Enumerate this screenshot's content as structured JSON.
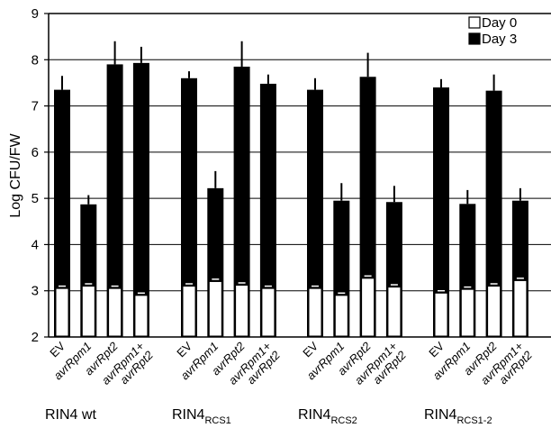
{
  "chart_data": {
    "type": "bar",
    "ylabel": "Log CFU/FW",
    "ylim": [
      2,
      9
    ],
    "yticks": [
      "2",
      "3",
      "4",
      "5",
      "6",
      "7",
      "8",
      "9"
    ],
    "grid": "horizontal",
    "legend_position": "top-right",
    "series": [
      {
        "name": "Day 0",
        "color": "#ffffff"
      },
      {
        "name": "Day 3",
        "color": "#000000"
      }
    ],
    "groups": [
      {
        "label_main": "RIN4 wt",
        "label_sub": "",
        "categories": [
          {
            "line1": "EV",
            "line2": "",
            "italic": false
          },
          {
            "line1": "avrRpm1",
            "line2": "",
            "italic": true
          },
          {
            "line1": "avrRpt2",
            "line2": "",
            "italic": true
          },
          {
            "line1": "avrRpm1+",
            "line2": "avrRpt2",
            "italic": true
          }
        ],
        "day0": [
          3.05,
          3.1,
          3.05,
          2.9
        ],
        "day0_err": [
          0.05,
          0.05,
          0.05,
          0.05
        ],
        "day3": [
          7.35,
          4.87,
          7.9,
          7.93
        ],
        "day3_err": [
          0.3,
          0.2,
          0.5,
          0.35
        ]
      },
      {
        "label_main": "RIN4",
        "label_sub": "RCS1",
        "categories": [
          {
            "line1": "EV",
            "line2": "",
            "italic": false
          },
          {
            "line1": "avrRpm1",
            "line2": "",
            "italic": true
          },
          {
            "line1": "avrRpt2",
            "line2": "",
            "italic": true
          },
          {
            "line1": "avrRpm1+",
            "line2": "avrRpt2",
            "italic": true
          }
        ],
        "day0": [
          3.1,
          3.2,
          3.12,
          3.05
        ],
        "day0_err": [
          0.05,
          0.05,
          0.05,
          0.05
        ],
        "day3": [
          7.6,
          5.22,
          7.85,
          7.48
        ],
        "day3_err": [
          0.15,
          0.37,
          0.55,
          0.2
        ]
      },
      {
        "label_main": "RIN4",
        "label_sub": "RCS2",
        "categories": [
          {
            "line1": "EV",
            "line2": "",
            "italic": false
          },
          {
            "line1": "avrRpm1",
            "line2": "",
            "italic": true
          },
          {
            "line1": "avrRpt2",
            "line2": "",
            "italic": true
          },
          {
            "line1": "avrRpm1+",
            "line2": "avrRpt2",
            "italic": true
          }
        ],
        "day0": [
          3.05,
          2.9,
          3.27,
          3.08
        ],
        "day0_err": [
          0.05,
          0.05,
          0.05,
          0.05
        ],
        "day3": [
          7.35,
          4.95,
          7.63,
          4.92
        ],
        "day3_err": [
          0.25,
          0.38,
          0.52,
          0.35
        ]
      },
      {
        "label_main": "RIN4",
        "label_sub": "RCS1-2",
        "categories": [
          {
            "line1": "EV",
            "line2": "",
            "italic": false
          },
          {
            "line1": "avrRpm1",
            "line2": "",
            "italic": true
          },
          {
            "line1": "avrRpt2",
            "line2": "",
            "italic": true
          },
          {
            "line1": "avrRpm1+",
            "line2": "avrRpt2",
            "italic": true
          }
        ],
        "day0": [
          2.95,
          3.03,
          3.1,
          3.22
        ],
        "day0_err": [
          0.05,
          0.05,
          0.05,
          0.05
        ],
        "day3": [
          7.4,
          4.88,
          7.33,
          4.95
        ],
        "day3_err": [
          0.18,
          0.3,
          0.35,
          0.27
        ]
      }
    ]
  }
}
